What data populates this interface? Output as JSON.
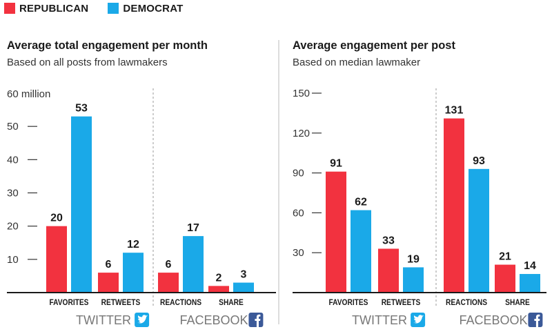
{
  "legend": {
    "republican": {
      "label": "REPUBLICAN",
      "color": "#f2323f"
    },
    "democrat": {
      "label": "DEMOCRAT",
      "color": "#1aa9e8"
    }
  },
  "chart_data": [
    {
      "type": "bar",
      "title": "Average total engagement per month",
      "subtitle": "Based on all posts from lawmakers",
      "y_unit_label": "60 million",
      "ylim": [
        0,
        60
      ],
      "yticks": [
        10,
        20,
        30,
        40,
        50
      ],
      "categories": [
        "FAVORITES",
        "RETWEETS",
        "REACTIONS",
        "SHARE"
      ],
      "groups": [
        {
          "label": "TWITTER",
          "icon": "twitter-icon",
          "categories": [
            "FAVORITES",
            "RETWEETS"
          ]
        },
        {
          "label": "FACEBOOK",
          "icon": "facebook-icon",
          "categories": [
            "REACTIONS",
            "SHARE"
          ]
        }
      ],
      "series": [
        {
          "name": "REPUBLICAN",
          "color": "#f2323f",
          "values": [
            20,
            6,
            6,
            2
          ]
        },
        {
          "name": "DEMOCRAT",
          "color": "#1aa9e8",
          "values": [
            53,
            12,
            17,
            3
          ]
        }
      ],
      "grid": false
    },
    {
      "type": "bar",
      "title": "Average engagement per post",
      "subtitle": "Based on median lawmaker",
      "y_unit_label": "",
      "ylim": [
        0,
        150
      ],
      "yticks": [
        30,
        60,
        90,
        120,
        150
      ],
      "categories": [
        "FAVORITES",
        "RETWEETS",
        "REACTIONS",
        "SHARE"
      ],
      "groups": [
        {
          "label": "TWITTER",
          "icon": "twitter-icon",
          "categories": [
            "FAVORITES",
            "RETWEETS"
          ]
        },
        {
          "label": "FACEBOOK",
          "icon": "facebook-icon",
          "categories": [
            "REACTIONS",
            "SHARE"
          ]
        }
      ],
      "series": [
        {
          "name": "REPUBLICAN",
          "color": "#f2323f",
          "values": [
            91,
            33,
            131,
            21
          ]
        },
        {
          "name": "DEMOCRAT",
          "color": "#1aa9e8",
          "values": [
            62,
            19,
            93,
            14
          ]
        }
      ],
      "grid": false
    }
  ]
}
